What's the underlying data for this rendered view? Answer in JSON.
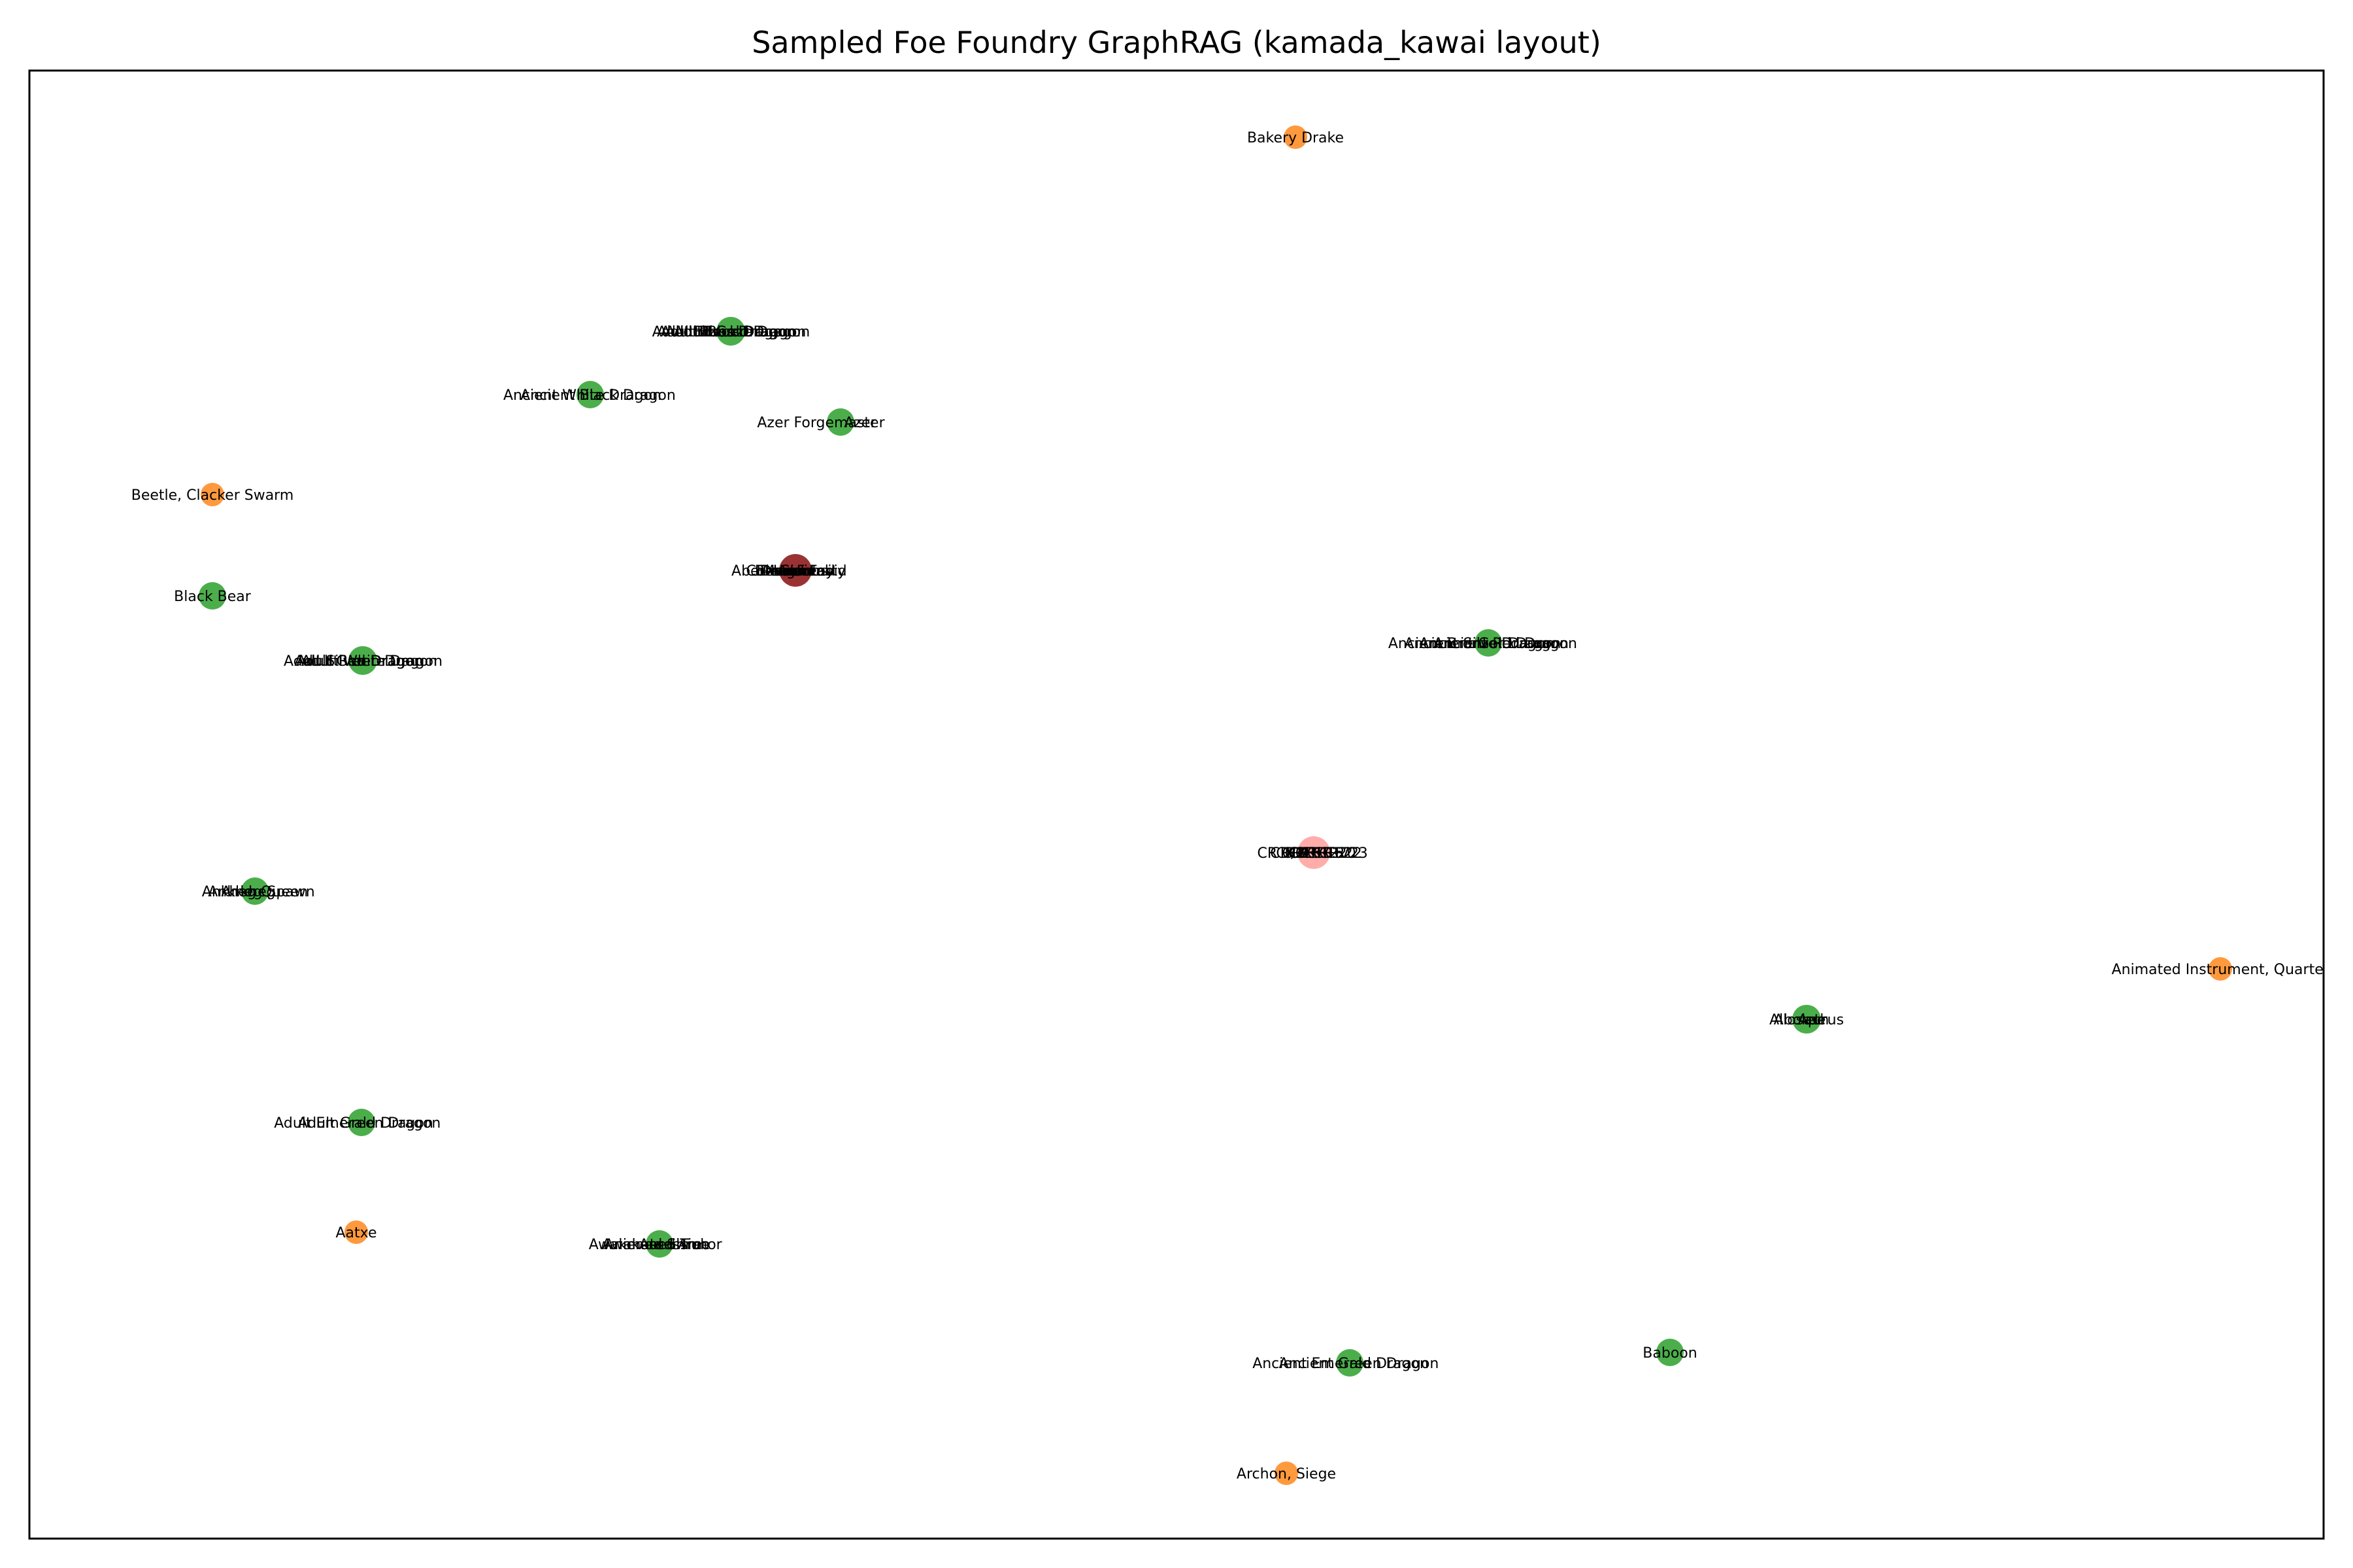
{
  "title": "Sampled Foe Foundry GraphRAG (kamada_kawai layout)",
  "colors": {
    "green": "#2ca02c",
    "orange": "#ff7f0e",
    "darkred": "#800000",
    "pink": "#ff9896",
    "frame": "#000000"
  },
  "nodes": [
    {
      "id": "bakery-drake",
      "labels": [
        "Bakery Drake"
      ],
      "color": "orange"
    },
    {
      "id": "adult-cluster-top",
      "labels": [
        "Adult Brass Dragon",
        "Adult Black Dragon",
        "Adult Blue Dragon",
        "Adult Bronze Dragon",
        "Adult Gold Dragon"
      ],
      "color": "green"
    },
    {
      "id": "ancient-white-cluster",
      "labels": [
        "Ancient White Dragon",
        "Ancient Black Dragon"
      ],
      "color": "green"
    },
    {
      "id": "azer-cluster",
      "labels": [
        "Azer Forgemaster",
        "Azer"
      ],
      "color": "green"
    },
    {
      "id": "beetle-swarm",
      "labels": [
        "Beetle, Clacker Swarm"
      ],
      "color": "orange"
    },
    {
      "id": "black-bear",
      "labels": [
        "Black Bear"
      ],
      "color": "green"
    },
    {
      "id": "hub-creature-type",
      "labels": [
        "Aberration",
        "Beast",
        "Construct",
        "Dragon",
        "Elemental",
        "Giant",
        "Monstrosity",
        "Humanoid",
        "Fiend",
        "Fey"
      ],
      "color": "darkred"
    },
    {
      "id": "ancient-cluster-right",
      "labels": [
        "Ancient Bronze Dragon",
        "Ancient Silver Dragon",
        "Ancient Gold Dragon",
        "Ancient Red Dragon"
      ],
      "color": "green"
    },
    {
      "id": "adult-cluster-left",
      "labels": [
        "Adult Silver Dragon",
        "Adult Red Dragon",
        "Adult Green Dragon",
        "Adult White Dragon"
      ],
      "color": "green"
    },
    {
      "id": "hub-cr",
      "labels": [
        "CR 1/2",
        "CR 1",
        "CR 2",
        "CR 3",
        "CR 5",
        "CR 10",
        "CR 12",
        "CR 15",
        "CR 17",
        "CR 20",
        "CR 22",
        "CR 23"
      ],
      "color": "pink"
    },
    {
      "id": "ankheg-cluster",
      "labels": [
        "Ankheg",
        "Ankheg Queen",
        "Ankheg Spawn"
      ],
      "color": "green"
    },
    {
      "id": "animated-instrument",
      "labels": [
        "Animated Instrument, Quartet"
      ],
      "color": "orange"
    },
    {
      "id": "aboleth-cluster",
      "labels": [
        "Aboleth",
        "Allosaurus",
        "Ape"
      ],
      "color": "green"
    },
    {
      "id": "adult-emerald-cluster",
      "labels": [
        "Adult Emerald Dragon",
        "Adult Green Dragon"
      ],
      "color": "green"
    },
    {
      "id": "aatxe",
      "labels": [
        "Aatxe"
      ],
      "color": "orange"
    },
    {
      "id": "awakened-cluster",
      "labels": [
        "Awakened Shrub",
        "Awakened Tree",
        "Animated Armor",
        "Assassin"
      ],
      "color": "green"
    },
    {
      "id": "ancient-emerald-cluster",
      "labels": [
        "Ancient Emerald Dragon",
        "Ancient Green Dragon"
      ],
      "color": "green"
    },
    {
      "id": "baboon",
      "labels": [
        "Baboon"
      ],
      "color": "green"
    },
    {
      "id": "archon-siege",
      "labels": [
        "Archon, Siege"
      ],
      "color": "orange"
    }
  ]
}
